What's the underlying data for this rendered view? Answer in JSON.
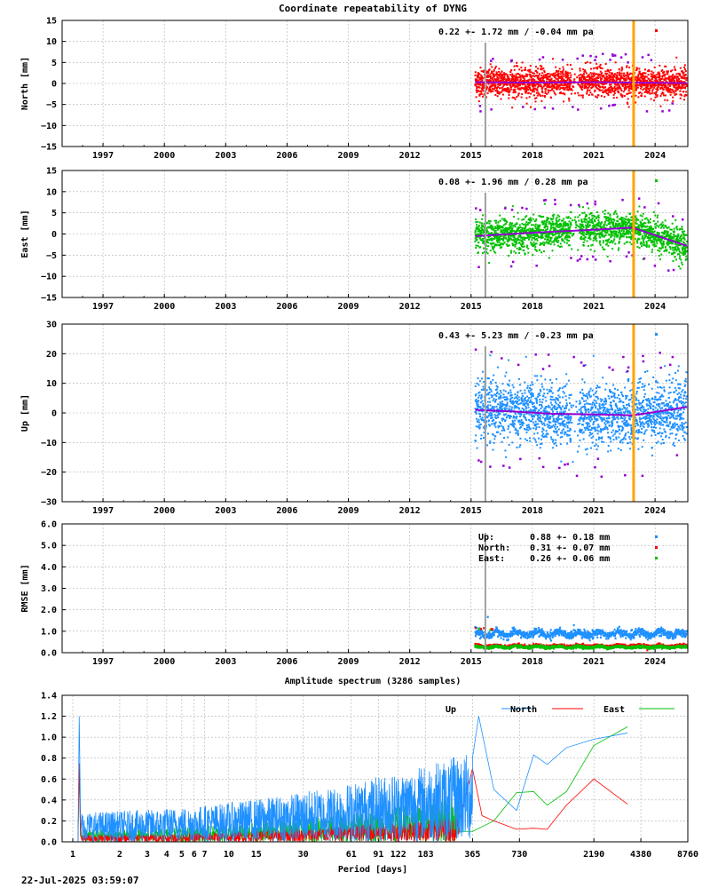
{
  "title": "Coordinate repeatability of DYNG",
  "timestamp": "22-Jul-2025 03:59:07",
  "colors": {
    "north": "#ff0000",
    "east": "#00c000",
    "up": "#1e90ff",
    "trend": "#9400d3",
    "event_orange": "#ffa500",
    "event_grey": "#a0a0a0",
    "grid": "#b0b0b0"
  },
  "chart_data": [
    {
      "type": "scatter",
      "id": "north",
      "ylabel": "North [mm]",
      "ylim": [
        -15,
        15
      ],
      "yticks": [
        -15,
        -10,
        -5,
        0,
        5,
        10,
        15
      ],
      "xlim": [
        1995.0,
        2025.6
      ],
      "xticks": [
        1997,
        2000,
        2003,
        2006,
        2009,
        2012,
        2015,
        2018,
        2021,
        2024
      ],
      "data_range": [
        2015.2,
        2025.55
      ],
      "scatter_sd": 1.72,
      "annotation": "0.22 +- 1.72 mm / -0.04 mm pa",
      "trend": {
        "x": [
          2015.2,
          2018,
          2021,
          2022.9,
          2025.55
        ],
        "y": [
          0.3,
          0.2,
          0.3,
          0.2,
          0.1
        ]
      },
      "events": [
        {
          "x": 2015.7,
          "color": "grey"
        },
        {
          "x": 2022.95,
          "color": "orange"
        }
      ],
      "grid": true,
      "legend_position": "top-right"
    },
    {
      "type": "scatter",
      "id": "east",
      "ylabel": "East [mm]",
      "ylim": [
        -15,
        15
      ],
      "yticks": [
        -15,
        -10,
        -5,
        0,
        5,
        10,
        15
      ],
      "xlim": [
        1995.0,
        2025.6
      ],
      "xticks": [
        1997,
        2000,
        2003,
        2006,
        2009,
        2012,
        2015,
        2018,
        2021,
        2024
      ],
      "data_range": [
        2015.2,
        2025.55
      ],
      "scatter_sd": 1.96,
      "annotation": "0.08 +- 1.96 mm /  0.28 mm pa",
      "trend": {
        "x": [
          2015.2,
          2018,
          2021,
          2022.9,
          2025.55
        ],
        "y": [
          -0.5,
          0.3,
          1.0,
          1.5,
          -2.8
        ]
      },
      "events": [
        {
          "x": 2015.7,
          "color": "grey"
        },
        {
          "x": 2022.95,
          "color": "orange"
        }
      ],
      "grid": true,
      "legend_position": "top-right"
    },
    {
      "type": "scatter",
      "id": "up",
      "ylabel": "Up [mm]",
      "ylim": [
        -30,
        30
      ],
      "yticks": [
        -30,
        -20,
        -10,
        0,
        10,
        20,
        30
      ],
      "xlim": [
        1995.0,
        2025.6
      ],
      "xticks": [
        1997,
        2000,
        2003,
        2006,
        2009,
        2012,
        2015,
        2018,
        2021,
        2024
      ],
      "data_range": [
        2015.2,
        2025.55
      ],
      "scatter_sd": 5.23,
      "annotation": "0.43 +- 5.23 mm / -0.23 mm pa",
      "trend": {
        "x": [
          2015.2,
          2017,
          2019,
          2021,
          2022.9,
          2024,
          2025.55
        ],
        "y": [
          1.0,
          0.5,
          -0.3,
          -0.5,
          -0.8,
          0.3,
          2.0
        ]
      },
      "events": [
        {
          "x": 2015.7,
          "color": "grey"
        },
        {
          "x": 2022.95,
          "color": "orange"
        }
      ],
      "grid": true,
      "legend_position": "top-right"
    },
    {
      "type": "scatter",
      "id": "rmse",
      "ylabel": "RMSE [mm]",
      "ylim": [
        0,
        6
      ],
      "yticks": [
        0.0,
        1.0,
        2.0,
        3.0,
        4.0,
        5.0,
        6.0
      ],
      "ytick_labels": [
        "0.0",
        "1.0",
        "2.0",
        "3.0",
        "4.0",
        "5.0",
        "6.0"
      ],
      "xlim": [
        1995.0,
        2025.6
      ],
      "xticks": [
        1997,
        2000,
        2003,
        2006,
        2009,
        2012,
        2015,
        2018,
        2021,
        2024
      ],
      "data_range": [
        2015.2,
        2025.55
      ],
      "events": [
        {
          "x": 2015.7,
          "color": "grey"
        }
      ],
      "legend": [
        {
          "name": "Up:",
          "value": "0.88 +- 0.18 mm",
          "color": "up"
        },
        {
          "name": "North:",
          "value": "0.31 +- 0.07 mm",
          "color": "north"
        },
        {
          "name": "East:",
          "value": "0.26 +- 0.06 mm",
          "color": "east"
        }
      ],
      "series": [
        {
          "name": "Up",
          "mean": 0.88,
          "sd": 0.18
        },
        {
          "name": "North",
          "mean": 0.31,
          "sd": 0.07
        },
        {
          "name": "East",
          "mean": 0.26,
          "sd": 0.06
        }
      ],
      "grid": true,
      "legend_position": "top-right"
    },
    {
      "type": "line",
      "id": "spectrum",
      "title": "Amplitude spectrum (3286 samples)",
      "xlabel": "Period [days]",
      "ylim": [
        0,
        1.4
      ],
      "yticks": [
        0.0,
        0.2,
        0.4,
        0.6,
        0.8,
        1.0,
        1.2,
        1.4
      ],
      "ytick_labels": [
        "0.0",
        "0.2",
        "0.4",
        "0.6",
        "0.8",
        "1.0",
        "1.2",
        "1.4"
      ],
      "xscale": "log",
      "xlim": [
        1,
        8760
      ],
      "xticks": [
        1,
        2,
        3,
        4,
        5,
        6,
        7,
        10,
        15,
        30,
        61,
        91,
        122,
        183,
        365,
        730,
        2190,
        4380,
        8760
      ],
      "xtick_labels": [
        "1",
        "2",
        "3",
        "4",
        "5",
        "6",
        "7",
        "10",
        "15",
        "30",
        "61",
        "91",
        "122",
        "183",
        "365",
        "730",
        "2190",
        "4380",
        "8760"
      ],
      "legend": [
        {
          "name": "Up",
          "color": "up"
        },
        {
          "name": "North",
          "color": "north"
        },
        {
          "name": "East",
          "color": "east"
        }
      ],
      "series": [
        {
          "name": "Up",
          "x": [
            365,
            400,
            500,
            700,
            900,
            1100,
            1460,
            2190,
            3600
          ],
          "y": [
            0.8,
            1.2,
            0.5,
            0.3,
            0.83,
            0.74,
            0.9,
            0.98,
            1.04
          ]
        },
        {
          "name": "North",
          "x": [
            300,
            365,
            420,
            500,
            700,
            900,
            1100,
            1460,
            2190,
            3600
          ],
          "y": [
            0.2,
            0.7,
            0.25,
            0.2,
            0.12,
            0.13,
            0.12,
            0.35,
            0.6,
            0.36
          ]
        },
        {
          "name": "East",
          "x": [
            300,
            365,
            500,
            700,
            900,
            1100,
            1460,
            2190,
            3600
          ],
          "y": [
            0.1,
            0.1,
            0.2,
            0.47,
            0.48,
            0.35,
            0.48,
            0.92,
            1.1
          ]
        }
      ],
      "grid": true,
      "legend_position": "top-right"
    }
  ]
}
